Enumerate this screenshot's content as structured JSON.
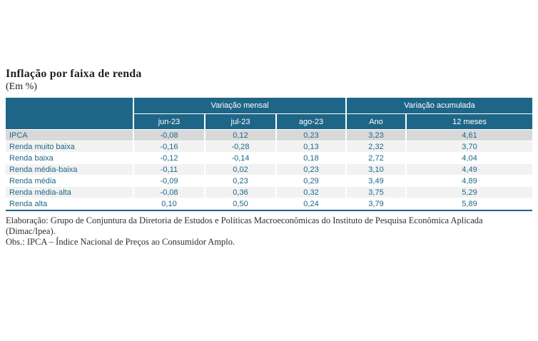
{
  "title": "Inflação por faixa de renda",
  "subtitle": "(Em %)",
  "table": {
    "group_headers": [
      "Variação mensal",
      "Variação acumulada"
    ],
    "columns": [
      "jun-23",
      "jul-23",
      "ago-23",
      "Ano",
      "12 meses"
    ],
    "rows": [
      {
        "label": "IPCA",
        "values": [
          "-0,08",
          "0,12",
          "0,23",
          "3,23",
          "4,61"
        ]
      },
      {
        "label": "Renda muito baixa",
        "values": [
          "-0,16",
          "-0,28",
          "0,13",
          "2,32",
          "3,70"
        ]
      },
      {
        "label": "Renda baixa",
        "values": [
          "-0,12",
          "-0,14",
          "0,18",
          "2,72",
          "4,04"
        ]
      },
      {
        "label": "Renda média-baixa",
        "values": [
          "-0,11",
          "0,02",
          "0,23",
          "3,10",
          "4,49"
        ]
      },
      {
        "label": "Renda média",
        "values": [
          "-0,09",
          "0,23",
          "0,29",
          "3,49",
          "4,89"
        ]
      },
      {
        "label": "Renda média-alta",
        "values": [
          "-0,08",
          "0,36",
          "0,32",
          "3,75",
          "5,29"
        ]
      },
      {
        "label": "Renda alta",
        "values": [
          "0,10",
          "0,50",
          "0,24",
          "3,79",
          "5,89"
        ]
      }
    ]
  },
  "footer": {
    "line1": "Elaboração: Grupo de Conjuntura da Diretoria de Estudos e Políticas Macroeconômicas do Instituto de Pesquisa Econômica Aplicada (Dimac/Ipea).",
    "line2": "Obs.: IPCA – Índice Nacional de Preços ao Consumidor Amplo."
  },
  "colors": {
    "header_teal": "#1E6687",
    "row_dark": "#D9D9D9",
    "row_light": "#F2F2F2",
    "row_white": "#FFFFFF",
    "value_text": "#1E6687",
    "border_white": "#FFFFFF"
  },
  "chart_data": {
    "type": "table",
    "title": "Inflação por faixa de renda",
    "unit": "Em %",
    "column_groups": [
      {
        "name": "Variação mensal",
        "columns": [
          "jun-23",
          "jul-23",
          "ago-23"
        ]
      },
      {
        "name": "Variação acumulada",
        "columns": [
          "Ano",
          "12 meses"
        ]
      }
    ],
    "categories": [
      "IPCA",
      "Renda muito baixa",
      "Renda baixa",
      "Renda média-baixa",
      "Renda média",
      "Renda média-alta",
      "Renda alta"
    ],
    "series": [
      {
        "name": "jun-23",
        "values": [
          -0.08,
          -0.16,
          -0.12,
          -0.11,
          -0.09,
          -0.08,
          0.1
        ]
      },
      {
        "name": "jul-23",
        "values": [
          0.12,
          -0.28,
          -0.14,
          0.02,
          0.23,
          0.36,
          0.5
        ]
      },
      {
        "name": "ago-23",
        "values": [
          0.23,
          0.13,
          0.18,
          0.23,
          0.29,
          0.32,
          0.24
        ]
      },
      {
        "name": "Ano",
        "values": [
          3.23,
          2.32,
          2.72,
          3.1,
          3.49,
          3.75,
          3.79
        ]
      },
      {
        "name": "12 meses",
        "values": [
          4.61,
          3.7,
          4.04,
          4.49,
          4.89,
          5.29,
          5.89
        ]
      }
    ]
  }
}
